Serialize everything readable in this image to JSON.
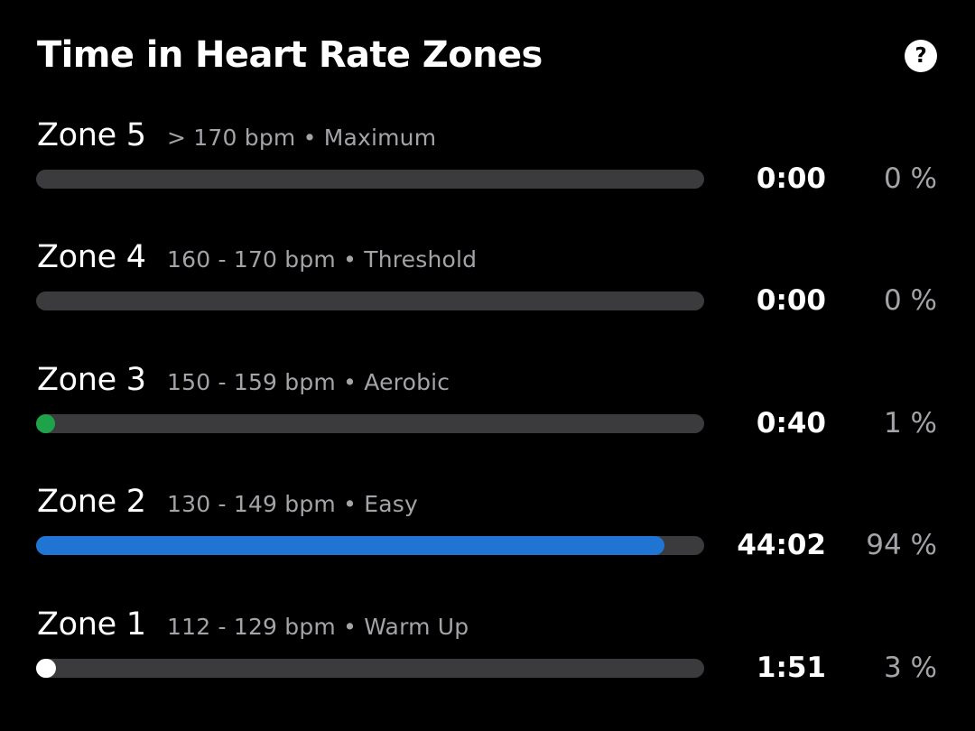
{
  "title": "Time in Heart Rate Zones",
  "help_icon": "question-mark-icon",
  "help_glyph": "?",
  "zones": [
    {
      "name": "Zone 5",
      "desc": "> 170 bpm • Maximum",
      "time": "0:00",
      "pct": "0 %",
      "fraction": 0.0,
      "color": "#3b3b3e"
    },
    {
      "name": "Zone 4",
      "desc": "160 - 170 bpm • Threshold",
      "time": "0:00",
      "pct": "0 %",
      "fraction": 0.0,
      "color": "#3b3b3e"
    },
    {
      "name": "Zone 3",
      "desc": "150 - 159 bpm • Aerobic",
      "time": "0:40",
      "pct": "1 %",
      "fraction": 0.01,
      "color": "#1fa34a"
    },
    {
      "name": "Zone 2",
      "desc": "130 - 149 bpm • Easy",
      "time": "44:02",
      "pct": "94 %",
      "fraction": 0.94,
      "color": "#1f74d4"
    },
    {
      "name": "Zone 1",
      "desc": "112 - 129 bpm • Warm Up",
      "time": "1:51",
      "pct": "3 %",
      "fraction": 0.03,
      "color": "#ffffff"
    }
  ]
}
